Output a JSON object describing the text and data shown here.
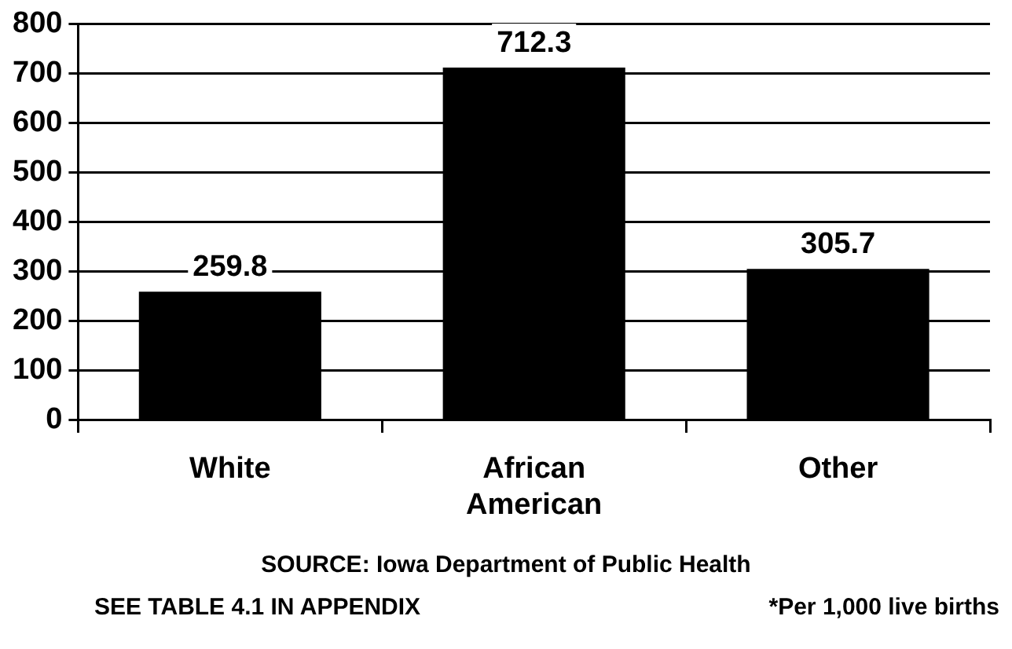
{
  "chart_data": {
    "type": "bar",
    "categories": [
      "White",
      "African American",
      "Other"
    ],
    "values": [
      259.8,
      712.3,
      305.7
    ],
    "color": "#000000",
    "ylim": [
      0,
      800
    ],
    "yticks": [
      0,
      100,
      200,
      300,
      400,
      500,
      600,
      700,
      800
    ],
    "grid": "y",
    "data_labels": true,
    "legend": false,
    "annotations": [
      "SOURCE: Iowa Department of Public Health",
      "SEE TABLE 4.1 IN APPENDIX",
      "*Per 1,000 live births"
    ]
  }
}
